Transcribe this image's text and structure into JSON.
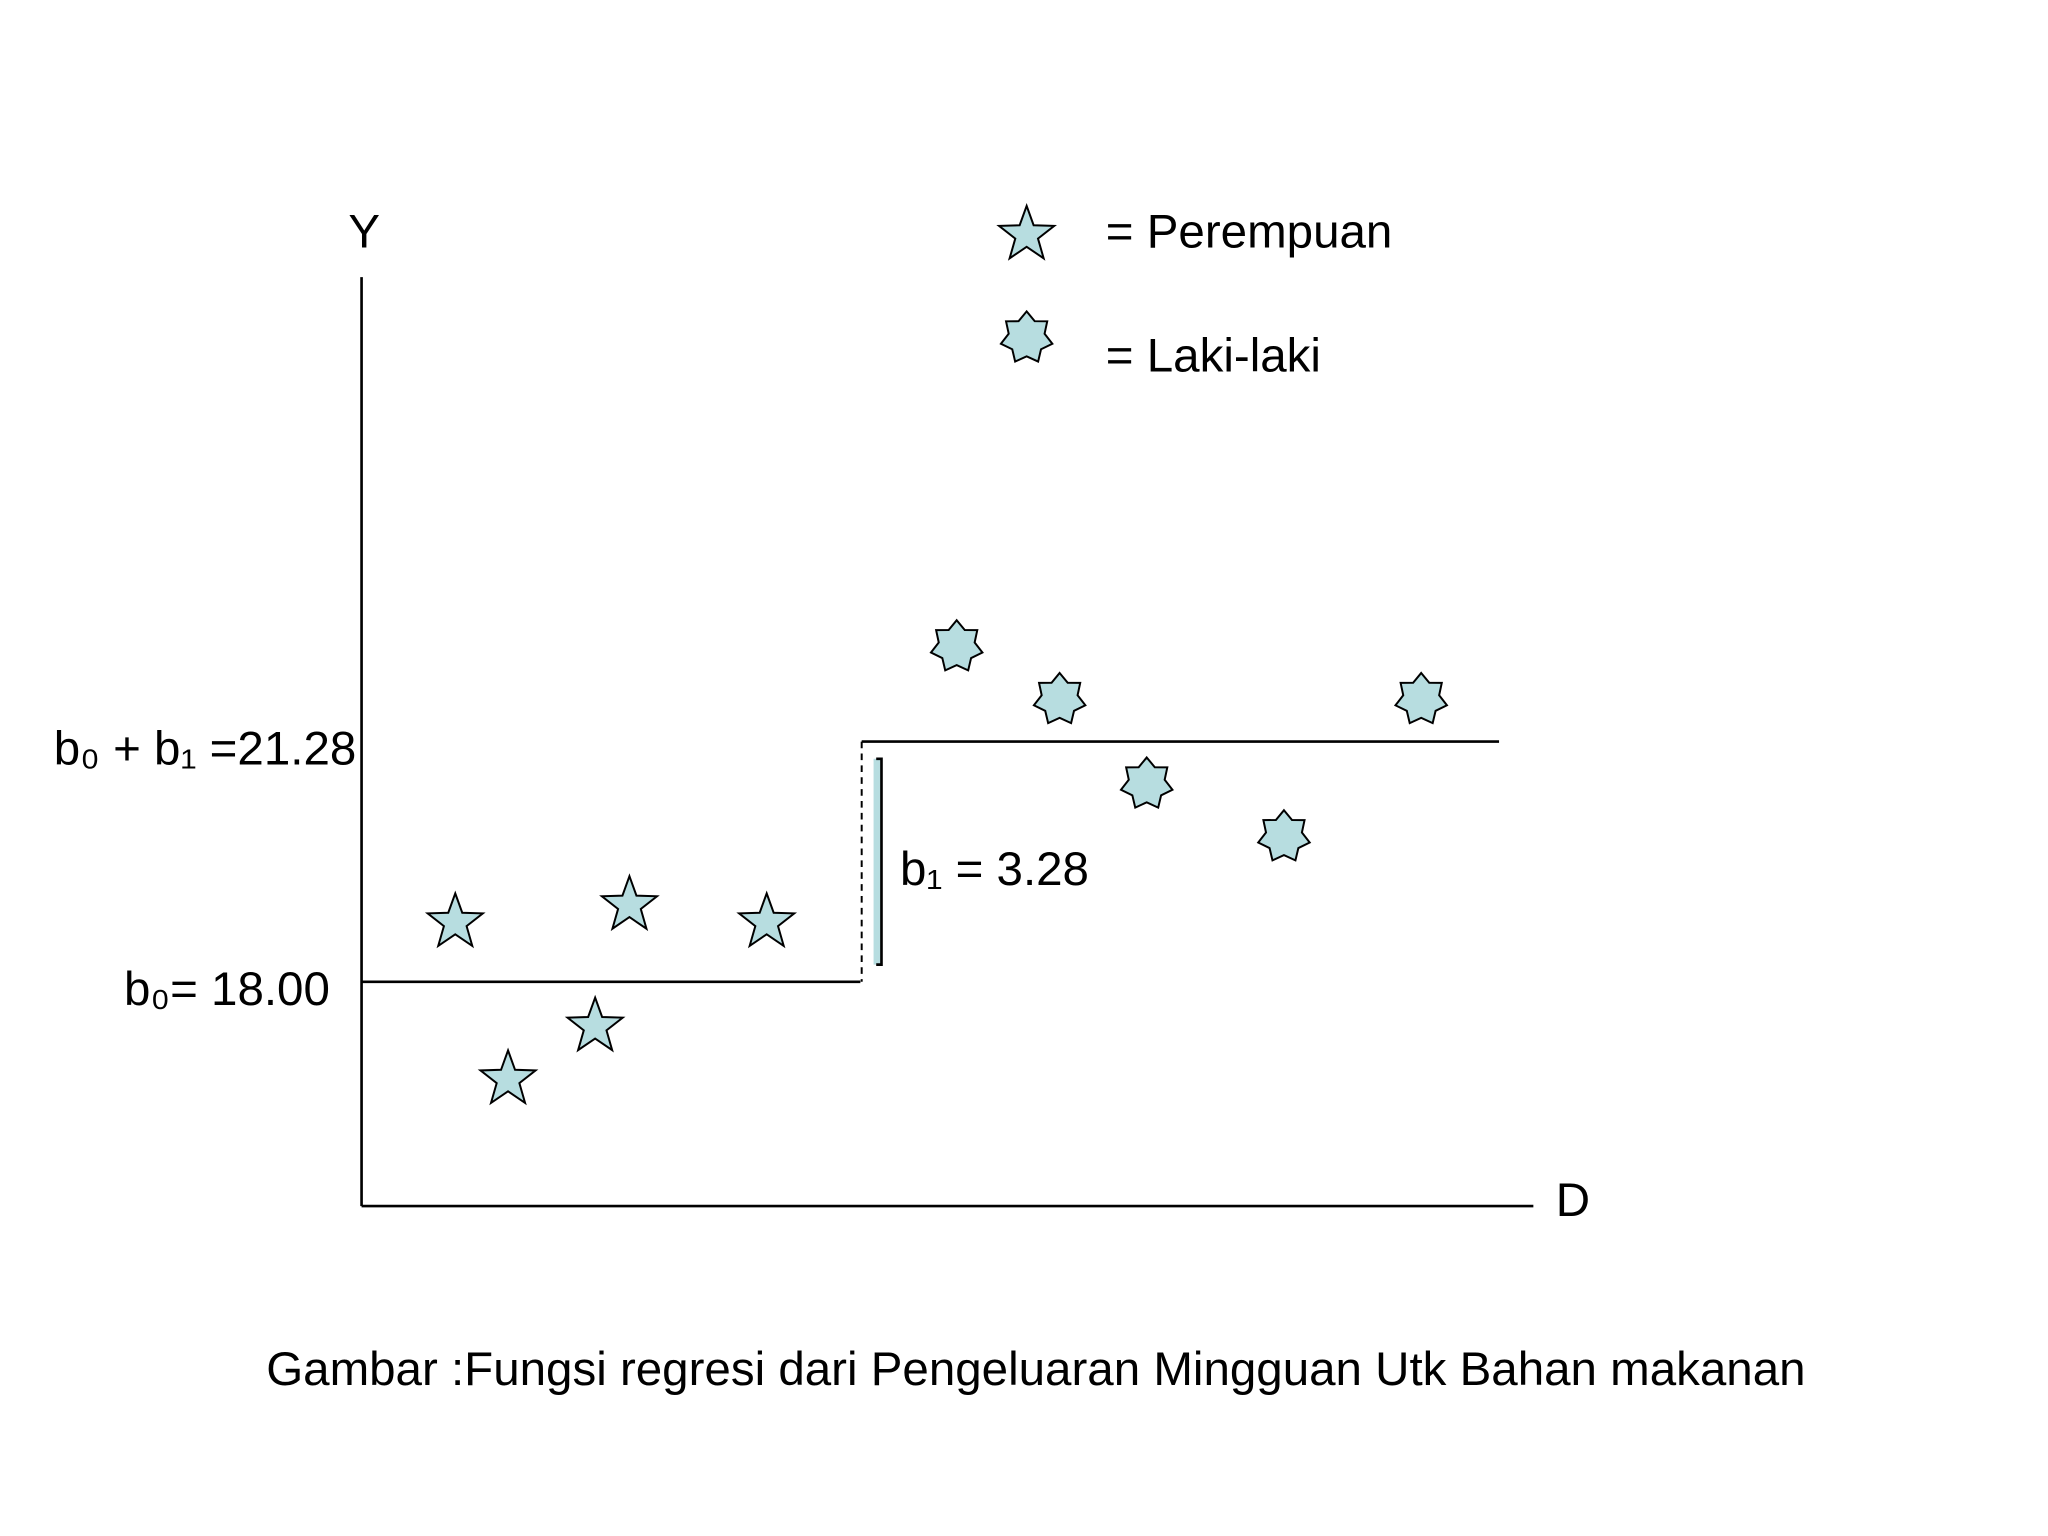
{
  "axes": {
    "y_label": "Y",
    "x_label": "D"
  },
  "legend": {
    "female": "= Perempuan",
    "male": "=  Laki-laki"
  },
  "labels": {
    "upper": "b₀ + b₁ =21.28",
    "lower": "b₀= 18.00",
    "difference": "b₁ = 3.28"
  },
  "caption": "Gambar  :Fungsi regresi dari Pengeluaran Mingguan Utk Bahan makanan"
}
